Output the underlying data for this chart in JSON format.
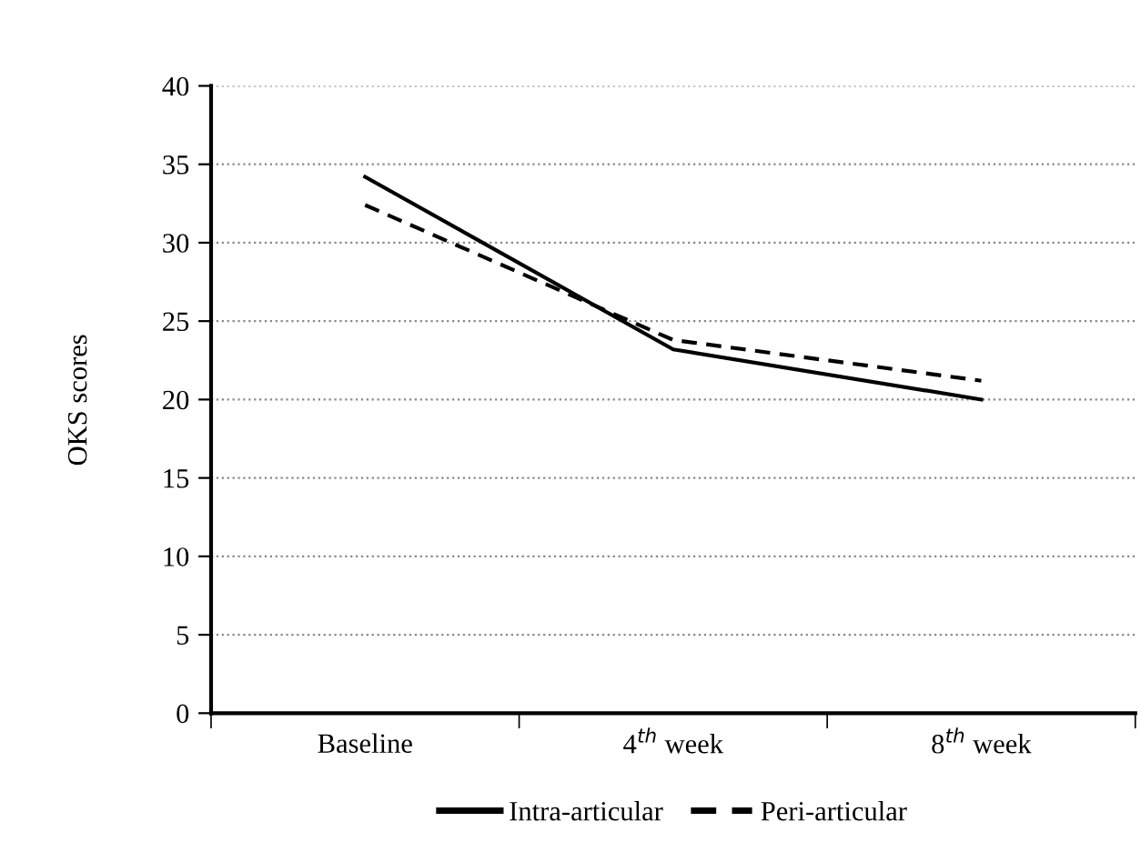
{
  "chart_data": {
    "type": "line",
    "ylabel": "OKS scores",
    "categories": [
      "Baseline",
      "4$^{th}$ week",
      "8$^{th}$ week"
    ],
    "series": [
      {
        "name": "Intra-articular",
        "color": "#000000",
        "line_style": "solid",
        "values": [
          34.2,
          23.2,
          20.0
        ]
      },
      {
        "name": "Peri-articular",
        "color": "#000000",
        "line_style": "dashed",
        "values": [
          32.4,
          23.8,
          21.2
        ]
      }
    ],
    "ylim": [
      0,
      40
    ],
    "yticks": [
      0,
      5,
      10,
      15,
      20,
      25,
      30,
      35,
      40
    ],
    "grid": "y",
    "legend": "bottom",
    "marker": "none"
  }
}
